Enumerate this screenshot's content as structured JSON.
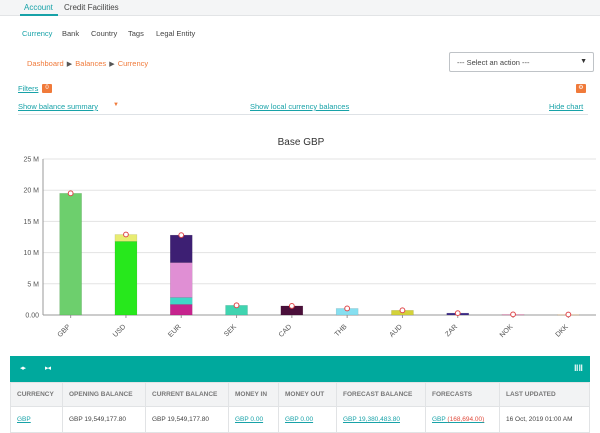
{
  "top_tabs": [
    {
      "label": "Account",
      "active": true
    },
    {
      "label": "Credit Facilities",
      "active": false
    }
  ],
  "sub_tabs": [
    {
      "label": "Currency",
      "active": true
    },
    {
      "label": "Bank",
      "active": false
    },
    {
      "label": "Country",
      "active": false
    },
    {
      "label": "Tags",
      "active": false
    },
    {
      "label": "Legal Entity",
      "active": false
    }
  ],
  "breadcrumb": [
    "Dashboard",
    "Balances",
    "Currency"
  ],
  "action_select": {
    "value": "--- Select an action ---"
  },
  "filters": {
    "label": "Filters",
    "badge": "0"
  },
  "links": {
    "balance_summary": "Show balance summary",
    "local_currency": "Show local currency balances",
    "hide_chart": "Hide chart"
  },
  "chart_data": {
    "type": "bar",
    "stacked": true,
    "title": "Base GBP",
    "categories": [
      "GBP",
      "USD",
      "EUR",
      "SEK",
      "CAD",
      "THB",
      "AUD",
      "ZAR",
      "NOK",
      "DKK"
    ],
    "ylim": [
      0,
      25
    ],
    "yticks": [
      "0.00",
      "5 M",
      "10 M",
      "15 M",
      "20 M",
      "25 M"
    ],
    "grid": true,
    "legend": "none",
    "series": [
      {
        "color": "#6dcf6d",
        "values": [
          19.5,
          0,
          0,
          0,
          0,
          0,
          0,
          0,
          0,
          0
        ]
      },
      {
        "color": "#27e81c",
        "values": [
          0,
          11.8,
          0,
          0,
          0,
          0,
          0,
          0,
          0,
          0
        ]
      },
      {
        "color": "#e8ec72",
        "values": [
          0,
          1.1,
          0,
          0,
          0,
          0,
          0,
          0,
          0,
          0
        ]
      },
      {
        "color": "#c6248e",
        "values": [
          0,
          0,
          1.7,
          0,
          0,
          0,
          0,
          0,
          0,
          0
        ]
      },
      {
        "color": "#3ed7c7",
        "values": [
          0,
          0,
          1.1,
          0,
          0,
          0,
          0,
          0,
          0,
          0
        ]
      },
      {
        "color": "#e08fd4",
        "values": [
          0,
          0,
          5.6,
          0,
          0,
          0,
          0,
          0,
          0,
          0
        ]
      },
      {
        "color": "#3d1f73",
        "values": [
          0,
          0,
          4.4,
          0,
          0,
          0,
          0,
          0,
          0,
          0
        ]
      },
      {
        "color": "#40d4b0",
        "values": [
          0,
          0,
          0,
          1.55,
          0,
          0,
          0,
          0,
          0,
          0
        ]
      },
      {
        "color": "#4a0f3a",
        "values": [
          0,
          0,
          0,
          0,
          1.45,
          0,
          0,
          0,
          0,
          0
        ]
      },
      {
        "color": "#86dff0",
        "values": [
          0,
          0,
          0,
          0,
          0,
          1.05,
          0,
          0,
          0,
          0
        ]
      },
      {
        "color": "#d3d23a",
        "values": [
          0,
          0,
          0,
          0,
          0,
          0,
          0.75,
          0,
          0,
          0
        ]
      },
      {
        "color": "#3c2a8a",
        "values": [
          0,
          0,
          0,
          0,
          0,
          0,
          0,
          0.3,
          0,
          0
        ]
      },
      {
        "color": "#e88bb8",
        "values": [
          0,
          0,
          0,
          0,
          0,
          0,
          0,
          0,
          0.1,
          0
        ]
      },
      {
        "color": "#e8c79a",
        "values": [
          0,
          0,
          0,
          0,
          0,
          0,
          0,
          0,
          0,
          0.08
        ]
      }
    ],
    "markers": [
      19.5,
      12.9,
      12.8,
      1.55,
      1.45,
      1.05,
      0.75,
      0.3,
      0.1,
      0.08
    ]
  },
  "table": {
    "headers": [
      "CURRENCY",
      "OPENING BALANCE",
      "CURRENT BALANCE",
      "MONEY IN",
      "MONEY OUT",
      "FORECAST BALANCE",
      "FORECASTS",
      "LAST UPDATED"
    ],
    "rows": [
      {
        "currency": "GBP",
        "opening_balance": "GBP 19,549,177.80",
        "current_balance": "GBP 19,549,177.80",
        "money_in": "GBP 0.00",
        "money_out": "GBP 0.00",
        "forecast_balance": "GBP 19,380,483.80",
        "forecasts_prefix": "GBP ",
        "forecasts_value": "(168,694.00)",
        "last_updated": "16 Oct, 2019 01:00 AM"
      }
    ]
  },
  "colors": {
    "accent": "#17a2a8",
    "table_bar": "#00a99d",
    "orange": "#f07a3a",
    "negative": "#e04b3c"
  },
  "icons": {
    "filters_badge": "filter-count-badge",
    "settings": "gear-icon",
    "columns": "columns-icon"
  }
}
